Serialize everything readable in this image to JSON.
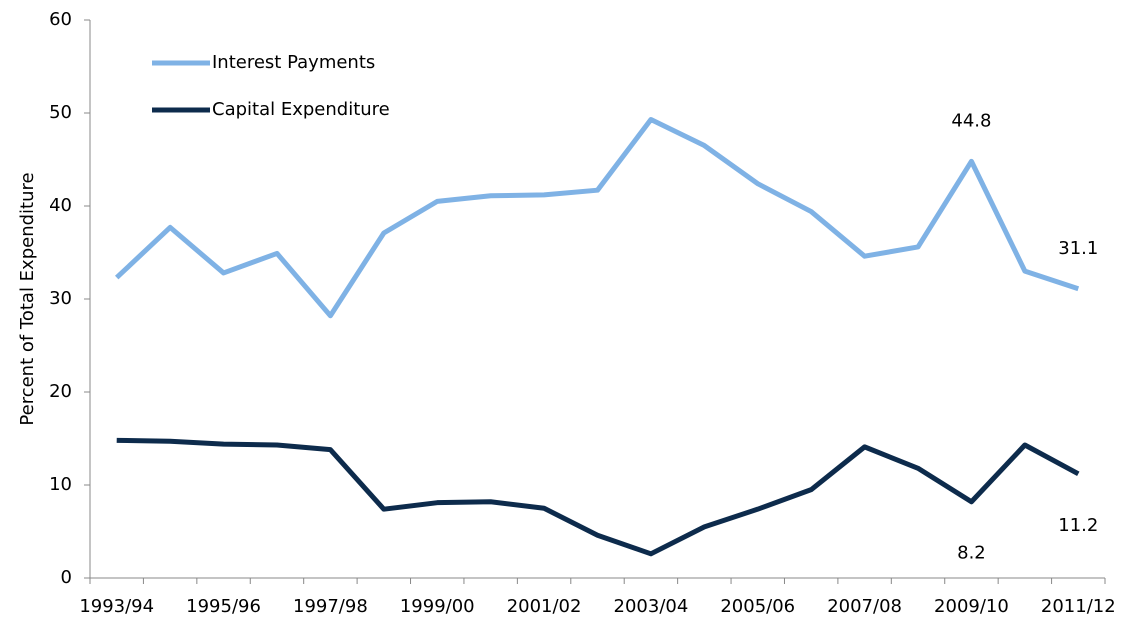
{
  "chart_data": {
    "type": "line",
    "y_label": "Percent of Total Expenditure",
    "categories": [
      "1993/94",
      null,
      "1995/96",
      null,
      "1997/98",
      null,
      "1999/00",
      null,
      "2001/02",
      null,
      "2003/04",
      null,
      "2005/06",
      null,
      "2007/08",
      null,
      "2009/10",
      null,
      "2011/12"
    ],
    "series": [
      {
        "name": "Interest Payments",
        "color": "#7fb2e5",
        "values": [
          32.3,
          37.7,
          32.8,
          34.9,
          28.2,
          37.1,
          40.5,
          41.1,
          41.2,
          41.7,
          49.3,
          46.5,
          42.4,
          39.4,
          34.6,
          35.6,
          44.8,
          33.0,
          31.1
        ],
        "value_labels": [
          null,
          null,
          null,
          null,
          null,
          null,
          null,
          null,
          null,
          null,
          null,
          null,
          null,
          null,
          null,
          null,
          "44.8",
          null,
          "31.1"
        ]
      },
      {
        "name": "Capital Expenditure",
        "color": "#0d2b4c",
        "values": [
          14.8,
          14.7,
          14.4,
          14.3,
          13.8,
          7.4,
          8.1,
          8.2,
          7.5,
          4.6,
          2.6,
          5.5,
          7.4,
          9.5,
          14.1,
          11.8,
          8.2,
          14.3,
          11.2
        ],
        "value_labels": [
          null,
          null,
          null,
          null,
          null,
          null,
          null,
          null,
          null,
          null,
          null,
          null,
          null,
          null,
          null,
          null,
          "8.2",
          null,
          "11.2"
        ]
      }
    ],
    "ylim": [
      0,
      60
    ],
    "yticks": [
      0,
      10,
      20,
      30,
      40,
      50,
      60
    ],
    "grid": false,
    "legend": "upper left"
  }
}
